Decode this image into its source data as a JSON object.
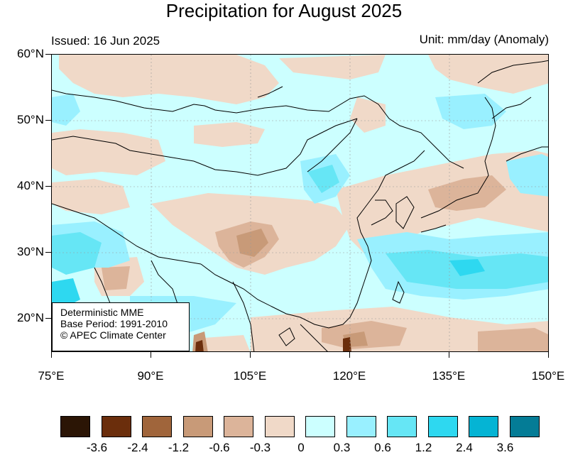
{
  "title": "Precipitation for August 2025",
  "issued": "Issued: 16 Jun 2025",
  "unit": "Unit: mm/day (Anomaly)",
  "info": {
    "line1": "Deterministic MME",
    "line2": "Base Period: 1991-2010",
    "line3": "© APEC Climate Center"
  },
  "axes": {
    "lat_labels": [
      "60°N",
      "50°N",
      "40°N",
      "30°N",
      "20°N"
    ],
    "lon_labels": [
      "75°E",
      "90°E",
      "105°E",
      "120°E",
      "135°E",
      "150°E"
    ]
  },
  "legend": {
    "colors": [
      "#2b1505",
      "#6b2e0c",
      "#a0653b",
      "#c89a78",
      "#dcb49a",
      "#f0d9c8",
      "#ccffff",
      "#99f0ff",
      "#66e6f5",
      "#2ed8f0",
      "#05b4d4",
      "#047c96"
    ],
    "labels": [
      "-3.6",
      "-2.4",
      "-1.2",
      "-0.6",
      "-0.3",
      "0",
      "0.3",
      "0.6",
      "1.2",
      "2.4",
      "3.6"
    ]
  },
  "colors": {
    "neg_light": "#f0d9c8",
    "neg_mid": "#dcb49a",
    "neg_strong": "#c89a78",
    "neg_dark": "#6b2e0c",
    "pos_light": "#ccffff",
    "pos_mid": "#99f0ff",
    "pos_strong": "#66e6f5",
    "pos_vstrong": "#2ed8f0"
  }
}
